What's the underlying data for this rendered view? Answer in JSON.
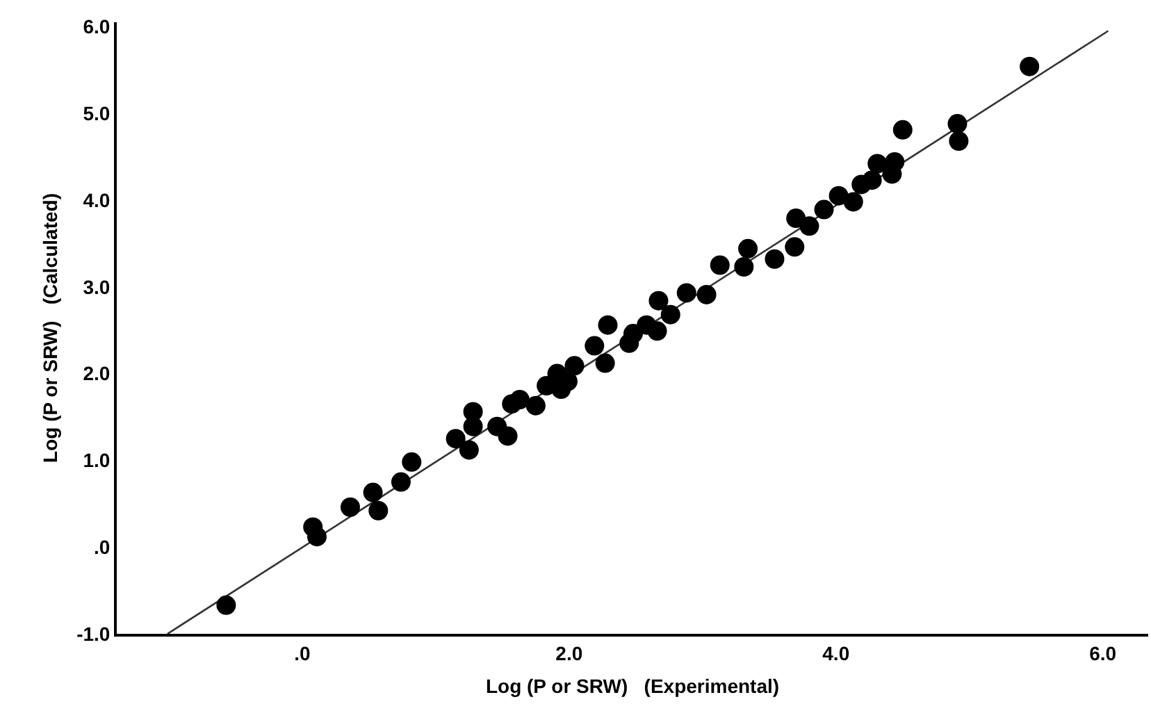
{
  "chart_data": {
    "type": "scatter",
    "xlabel": "Log (P or SRW)   (Experimental)",
    "ylabel": "Log (P or SRW)   (Calculated)",
    "xlim": [
      -1.39,
      6.34
    ],
    "ylim": [
      -1.0,
      6.05
    ],
    "xticks": [
      {
        "value": 0,
        "label": ".0"
      },
      {
        "value": 2,
        "label": "2.0"
      },
      {
        "value": 4,
        "label": "4.0"
      },
      {
        "value": 6,
        "label": "6.0"
      }
    ],
    "yticks": [
      {
        "value": -1,
        "label": "-1.0"
      },
      {
        "value": 0,
        "label": ".0"
      },
      {
        "value": 1,
        "label": "1.0"
      },
      {
        "value": 2,
        "label": "2.0"
      },
      {
        "value": 3,
        "label": "3.0"
      },
      {
        "value": 4,
        "label": "4.0"
      },
      {
        "value": 5,
        "label": "5.0"
      },
      {
        "value": 6,
        "label": "6.0"
      }
    ],
    "grid": false,
    "marker": "circle",
    "series": [
      {
        "type": "scatter",
        "color": "#000000",
        "x": [
          -0.57,
          0.08,
          0.11,
          0.36,
          0.53,
          0.57,
          0.74,
          0.82,
          1.15,
          1.25,
          1.28,
          1.28,
          1.46,
          1.54,
          1.57,
          1.63,
          1.75,
          1.83,
          1.91,
          1.94,
          1.99,
          2.04,
          2.19,
          2.27,
          2.29,
          2.45,
          2.48,
          2.58,
          2.66,
          2.67,
          2.76,
          2.88,
          3.03,
          3.13,
          3.31,
          3.34,
          3.54,
          3.69,
          3.7,
          3.8,
          3.91,
          4.02,
          4.13,
          4.19,
          4.27,
          4.31,
          4.42,
          4.44,
          4.5,
          4.91,
          4.92,
          5.45
        ],
        "values": [
          -0.67,
          0.23,
          0.12,
          0.46,
          0.63,
          0.42,
          0.75,
          0.98,
          1.25,
          1.12,
          1.56,
          1.39,
          1.39,
          1.28,
          1.65,
          1.7,
          1.63,
          1.86,
          2.0,
          1.82,
          1.91,
          2.09,
          2.32,
          2.12,
          2.56,
          2.35,
          2.46,
          2.56,
          2.49,
          2.84,
          2.68,
          2.93,
          2.91,
          3.25,
          3.23,
          3.44,
          3.32,
          3.46,
          3.79,
          3.7,
          3.89,
          4.05,
          3.98,
          4.18,
          4.23,
          4.42,
          4.3,
          4.44,
          4.81,
          4.88,
          4.68,
          5.54
        ]
      },
      {
        "type": "line",
        "color": "#333333",
        "line_style": "solid",
        "marker": "none",
        "x": [
          -1.01,
          6.04
        ],
        "values": [
          -1.0,
          5.95
        ]
      }
    ]
  }
}
